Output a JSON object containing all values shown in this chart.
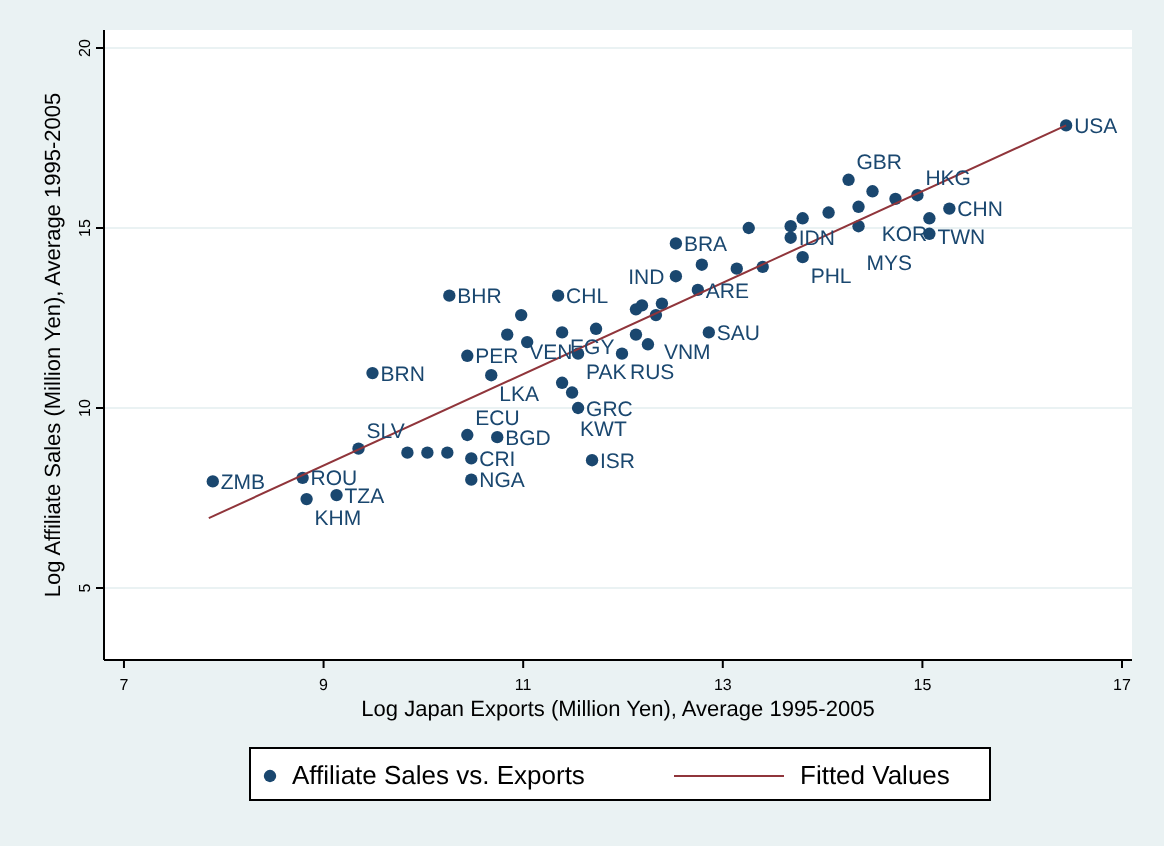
{
  "chart_data": {
    "type": "scatter",
    "xlabel": "Log Japan Exports (Million Yen), Average 1995-2005",
    "ylabel": "Log Affiliate Sales (Million Yen), Average 1995-2005",
    "xlim": [
      6.8,
      17.1
    ],
    "xticks": [
      7,
      9,
      11,
      13,
      15,
      17
    ],
    "ylim": [
      3,
      20.5
    ],
    "yticks": [
      5,
      10,
      15,
      20
    ],
    "grid": "y",
    "legend": "bottom",
    "marker": "circle",
    "series": [
      {
        "name": "Affiliate Sales vs. Exports",
        "color": "#1a476f",
        "x": [
          16.44,
          14.26,
          14.5,
          14.73,
          14.95,
          15.27,
          15.07,
          15.07,
          14.36,
          14.06,
          13.8,
          13.68,
          13.26,
          14.36,
          13.68,
          13.8,
          12.53,
          12.79,
          13.14,
          13.4,
          12.53,
          12.75,
          12.13,
          12.39,
          12.33,
          12.86,
          11.35,
          10.26,
          10.98,
          10.84,
          11.04,
          11.39,
          11.73,
          12.13,
          12.25,
          11.55,
          11.99,
          10.44,
          10.68,
          11.39,
          11.49,
          11.55,
          12.19,
          11.69,
          10.48,
          10.44,
          10.74,
          9.49,
          9.35,
          9.84,
          10.04,
          10.24,
          10.48,
          7.89,
          8.79,
          8.83,
          9.13
        ],
        "values": [
          17.85,
          16.34,
          16.02,
          15.81,
          15.91,
          15.54,
          15.27,
          14.84,
          15.59,
          15.43,
          15.27,
          15.05,
          15.0,
          15.05,
          14.73,
          14.19,
          14.57,
          13.98,
          13.87,
          13.92,
          13.66,
          13.28,
          12.74,
          12.9,
          12.58,
          12.1,
          13.12,
          13.12,
          12.58,
          12.04,
          11.83,
          12.1,
          12.2,
          12.04,
          11.77,
          11.51,
          11.51,
          11.45,
          10.91,
          10.7,
          10.43,
          10.0,
          12.85,
          8.55,
          8.01,
          9.25,
          9.19,
          10.97,
          8.87,
          8.76,
          8.76,
          8.76,
          8.6,
          7.96,
          8.06,
          7.47,
          7.58
        ]
      },
      {
        "name": "Fitted Values",
        "type": "line",
        "color": "#90353b",
        "marker": "none",
        "x": [
          7.85,
          16.44
        ],
        "values": [
          6.94,
          17.85
        ]
      }
    ],
    "annotations": [
      {
        "text": "USA",
        "x": 16.44,
        "y": 17.85
      },
      {
        "text": "GBR",
        "x": 14.26,
        "y": 16.34
      },
      {
        "text": "HKG",
        "x": 14.95,
        "y": 15.91
      },
      {
        "text": "CHN",
        "x": 15.27,
        "y": 15.54
      },
      {
        "text": "TWN",
        "x": 15.07,
        "y": 15.27
      },
      {
        "text": "KOR",
        "x": 15.07,
        "y": 14.84
      },
      {
        "text": "MYS",
        "x": 14.36,
        "y": 15.05
      },
      {
        "text": "IDN",
        "x": 13.68,
        "y": 14.73
      },
      {
        "text": "PHL",
        "x": 13.8,
        "y": 14.19
      },
      {
        "text": "BRA",
        "x": 12.53,
        "y": 14.57
      },
      {
        "text": "IND",
        "x": 12.53,
        "y": 13.66
      },
      {
        "text": "ARE",
        "x": 12.75,
        "y": 13.28
      },
      {
        "text": "VNM",
        "x": 12.33,
        "y": 12.58
      },
      {
        "text": "SAU",
        "x": 12.86,
        "y": 12.1
      },
      {
        "text": "CHL",
        "x": 11.35,
        "y": 13.12
      },
      {
        "text": "BHR",
        "x": 10.26,
        "y": 13.12
      },
      {
        "text": "VEN",
        "x": 10.98,
        "y": 12.58
      },
      {
        "text": "PAK",
        "x": 11.55,
        "y": 11.51
      },
      {
        "text": "RUS",
        "x": 11.99,
        "y": 11.51
      },
      {
        "text": "PER",
        "x": 10.44,
        "y": 11.45
      },
      {
        "text": "LKA",
        "x": 10.68,
        "y": 10.91
      },
      {
        "text": "EGY",
        "x": 11.39,
        "y": 10.7
      },
      {
        "text": "KWT",
        "x": 11.49,
        "y": 10.43
      },
      {
        "text": "GRC",
        "x": 11.55,
        "y": 10.0
      },
      {
        "text": "ISR",
        "x": 11.69,
        "y": 8.55
      },
      {
        "text": "NGA",
        "x": 10.48,
        "y": 8.01
      },
      {
        "text": "ECU",
        "x": 10.44,
        "y": 9.25
      },
      {
        "text": "BGD",
        "x": 10.74,
        "y": 9.19
      },
      {
        "text": "BRN",
        "x": 9.49,
        "y": 10.97
      },
      {
        "text": "SLV",
        "x": 9.35,
        "y": 8.87
      },
      {
        "text": "CRI",
        "x": 10.48,
        "y": 8.6
      },
      {
        "text": "ZMB",
        "x": 7.89,
        "y": 7.96
      },
      {
        "text": "ROU",
        "x": 8.79,
        "y": 8.06
      },
      {
        "text": "KHM",
        "x": 8.83,
        "y": 7.47
      },
      {
        "text": "TZA",
        "x": 9.13,
        "y": 7.58
      }
    ]
  }
}
